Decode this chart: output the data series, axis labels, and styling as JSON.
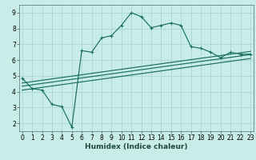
{
  "title": "",
  "xlabel": "Humidex (Indice chaleur)",
  "bg_color": "#c8ece8",
  "grid_color": "#a8d8d0",
  "line_color": "#1a6e62",
  "x_upper": [
    0,
    1,
    2,
    3,
    4,
    5,
    6,
    7,
    8,
    9,
    10,
    11,
    12,
    13,
    14,
    15,
    16,
    17,
    18,
    19,
    20,
    21,
    22,
    23
  ],
  "y_upper": [
    4.85,
    4.2,
    4.1,
    3.2,
    3.05,
    1.75,
    6.6,
    6.5,
    7.4,
    7.55,
    8.2,
    9.0,
    8.75,
    8.05,
    8.2,
    8.35,
    8.2,
    6.85,
    6.75,
    6.5,
    6.15,
    6.5,
    6.38,
    6.38
  ],
  "line1_x": [
    0,
    23
  ],
  "line1_y": [
    4.55,
    6.55
  ],
  "line2_x": [
    0,
    23
  ],
  "line2_y": [
    4.35,
    6.35
  ],
  "line3_x": [
    0,
    23
  ],
  "line3_y": [
    4.1,
    6.1
  ],
  "xlim": [
    -0.3,
    23.3
  ],
  "ylim": [
    1.5,
    9.5
  ],
  "yticks": [
    2,
    3,
    4,
    5,
    6,
    7,
    8,
    9
  ],
  "xticks": [
    0,
    1,
    2,
    3,
    4,
    5,
    6,
    7,
    8,
    9,
    10,
    11,
    12,
    13,
    14,
    15,
    16,
    17,
    18,
    19,
    20,
    21,
    22,
    23
  ],
  "tick_fontsize": 5.5,
  "xlabel_fontsize": 6.5
}
